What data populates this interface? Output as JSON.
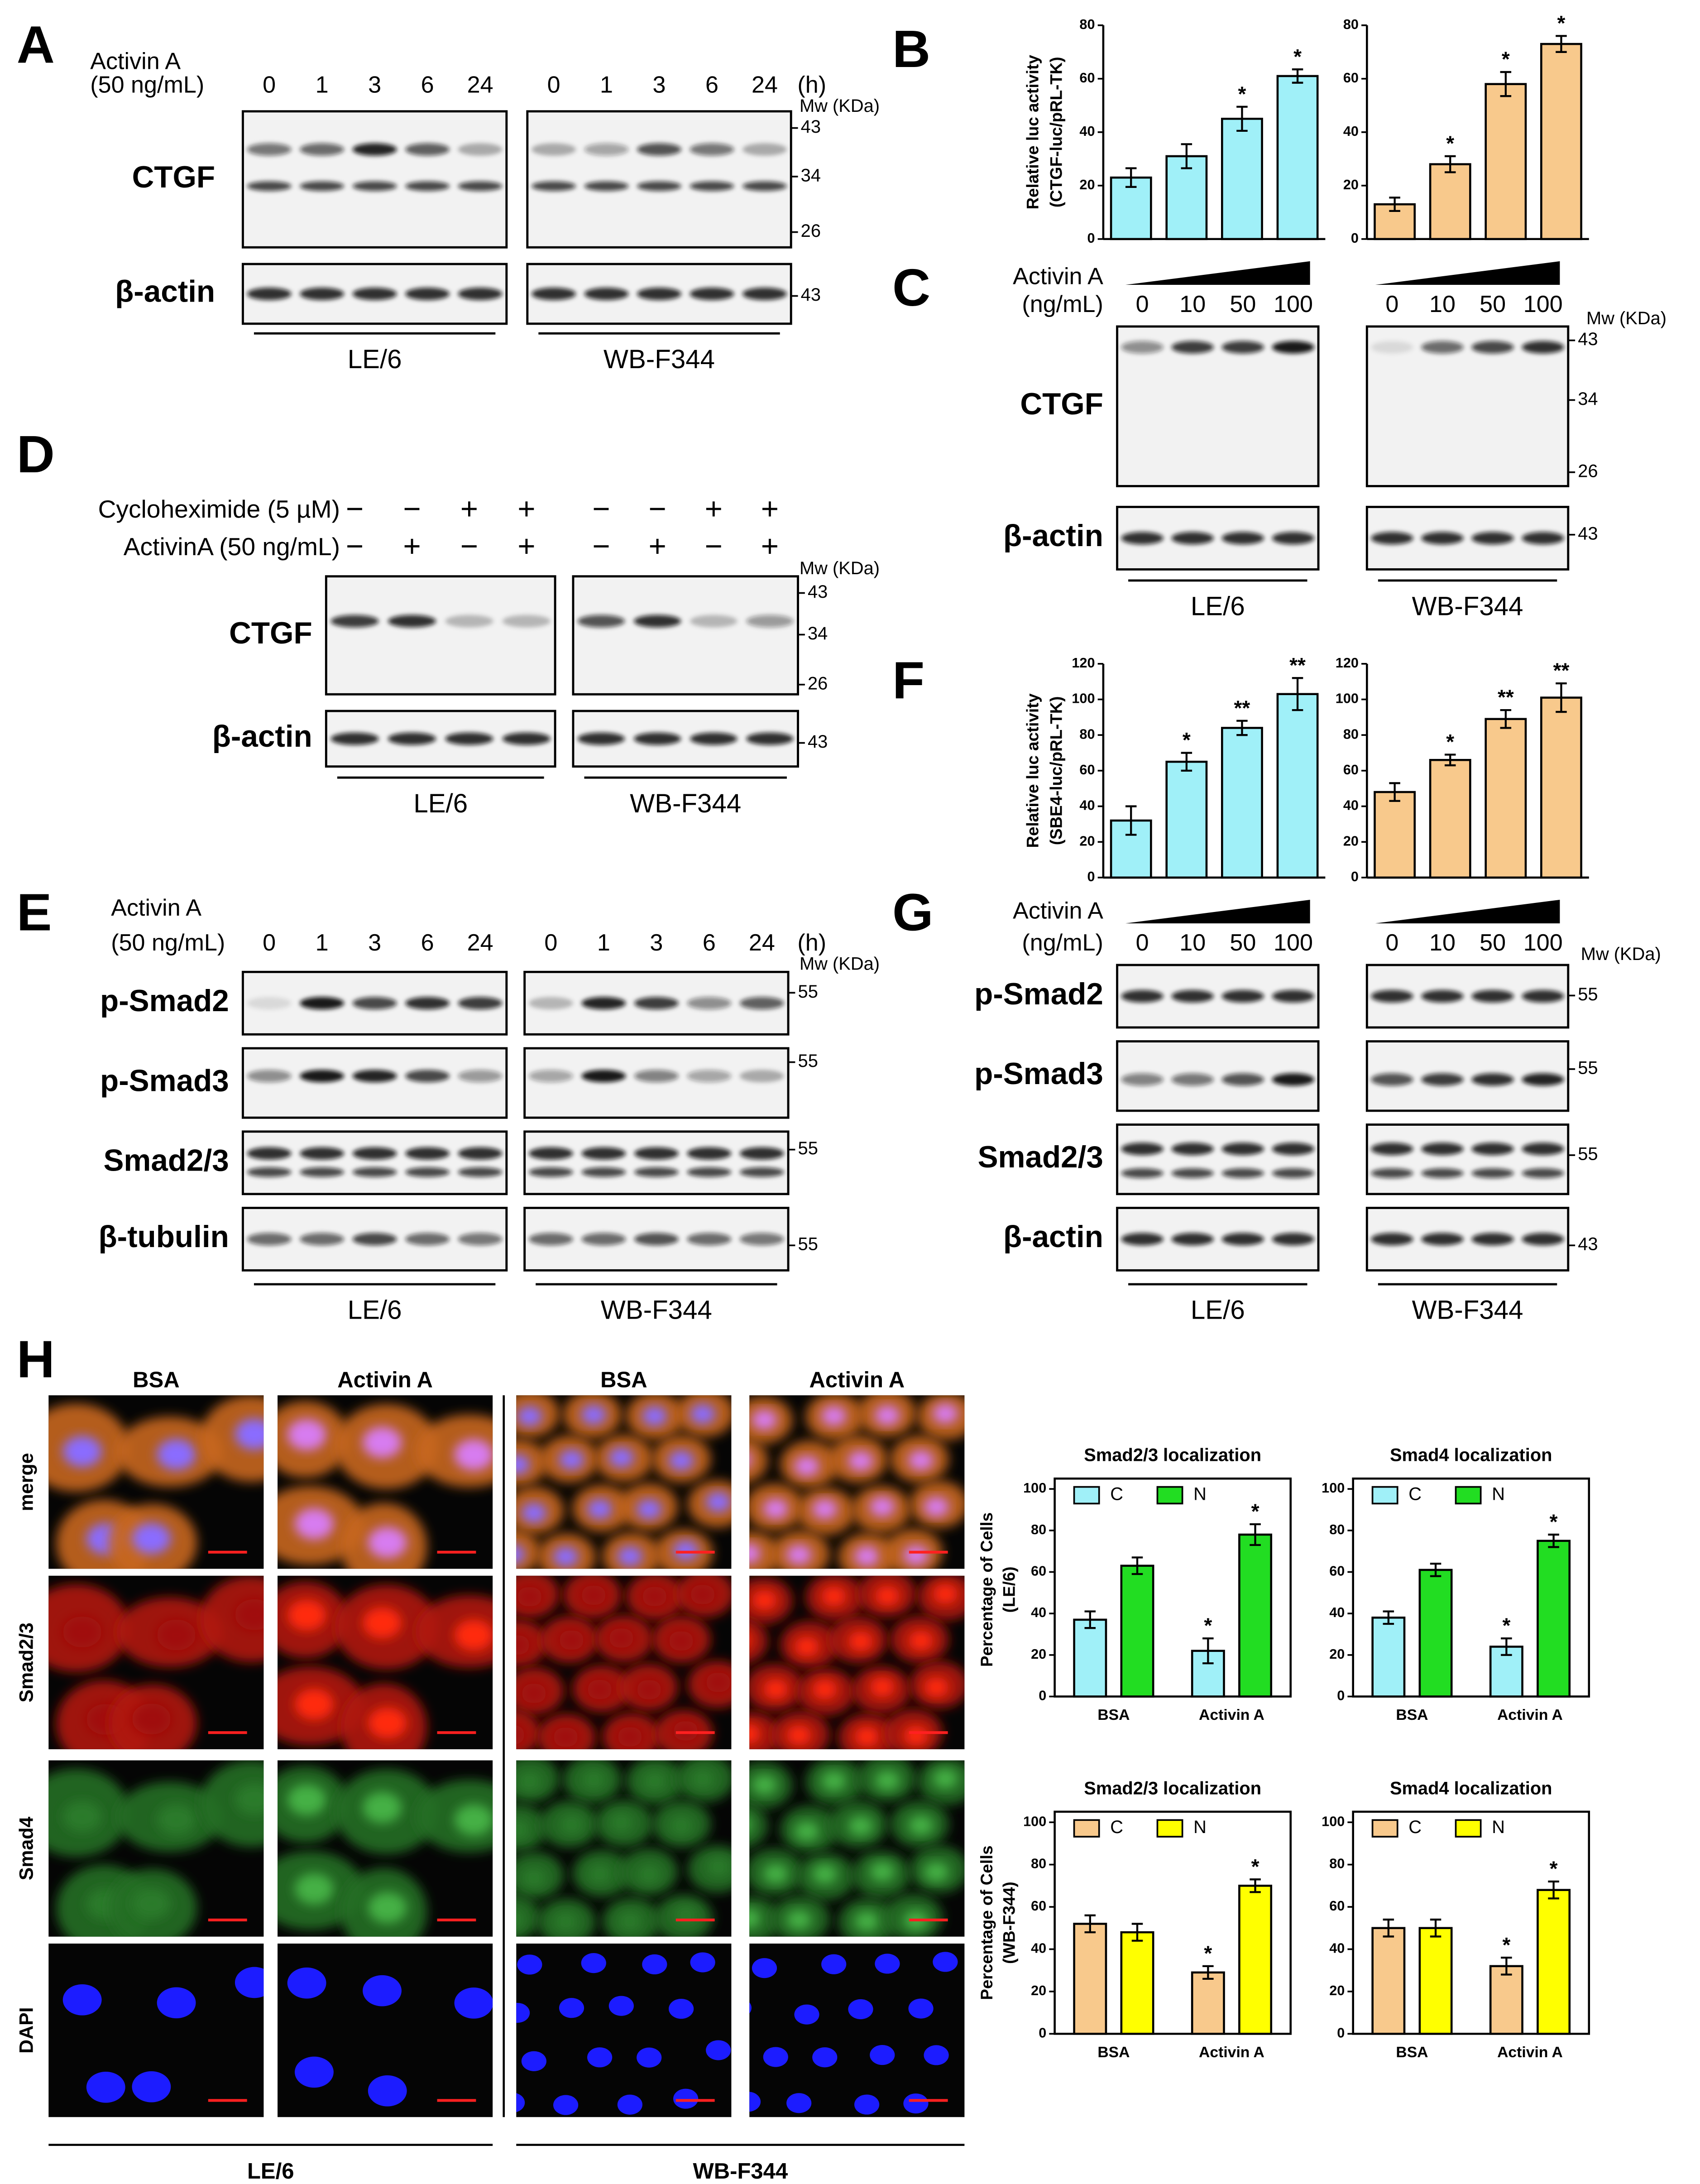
{
  "panel_letters": [
    "A",
    "B",
    "C",
    "D",
    "E",
    "F",
    "G",
    "H"
  ],
  "blots": {
    "A": {
      "treatment": [
        "Activin A",
        "(50 ng/mL)"
      ],
      "lanes": [
        "0",
        "1",
        "3",
        "6",
        "24"
      ],
      "unit": "(h)",
      "mw_title": "Mw (KDa)",
      "rows": [
        {
          "label": "CTGF",
          "mw": [
            "43",
            "34",
            "26"
          ]
        },
        {
          "label": "β-actin",
          "mw": [
            "43"
          ]
        }
      ],
      "groups": [
        "LE/6",
        "WB-F344"
      ]
    },
    "C": {
      "treatment": [
        "Activin A",
        "(ng/mL)"
      ],
      "lanes": [
        "0",
        "10",
        "50",
        "100"
      ],
      "mw_title": "Mw (KDa)",
      "rows": [
        {
          "label": "CTGF",
          "mw": [
            "43",
            "34",
            "26"
          ]
        },
        {
          "label": "β-actin",
          "mw": [
            "43"
          ]
        }
      ],
      "groups": [
        "LE/6",
        "WB-F344"
      ]
    },
    "D": {
      "conditions": [
        {
          "label": "Cycloheximide (5 µM)",
          "signs": [
            "−",
            "−",
            "+",
            "+"
          ]
        },
        {
          "label": "ActivinA (50 ng/mL)",
          "signs": [
            "−",
            "+",
            "−",
            "+"
          ]
        }
      ],
      "mw_title": "Mw (KDa)",
      "rows": [
        {
          "label": "CTGF",
          "mw": [
            "43",
            "34",
            "26"
          ]
        },
        {
          "label": "β-actin",
          "mw": [
            "43"
          ]
        }
      ],
      "groups": [
        "LE/6",
        "WB-F344"
      ]
    },
    "E": {
      "treatment": [
        "Activin A",
        "(50 ng/mL)"
      ],
      "lanes": [
        "0",
        "1",
        "3",
        "6",
        "24"
      ],
      "unit": "(h)",
      "mw_title": "Mw (KDa)",
      "rows": [
        {
          "label": "p-Smad2",
          "mw": [
            "55"
          ]
        },
        {
          "label": "p-Smad3",
          "mw": [
            "55"
          ]
        },
        {
          "label": "Smad2/3",
          "mw": [
            "55"
          ]
        },
        {
          "label": "β-tubulin",
          "mw": [
            "55"
          ]
        }
      ],
      "groups": [
        "LE/6",
        "WB-F344"
      ]
    },
    "G": {
      "treatment": [
        "Activin A",
        "(ng/mL)"
      ],
      "lanes": [
        "0",
        "10",
        "50",
        "100"
      ],
      "mw_title": "Mw (KDa)",
      "rows": [
        {
          "label": "p-Smad2",
          "mw": [
            "55"
          ]
        },
        {
          "label": "p-Smad3",
          "mw": [
            "55"
          ]
        },
        {
          "label": "Smad2/3",
          "mw": [
            "55"
          ]
        },
        {
          "label": "β-actin",
          "mw": [
            "43"
          ]
        }
      ],
      "groups": [
        "LE/6",
        "WB-F344"
      ]
    }
  },
  "imaging": {
    "columns": [
      "BSA",
      "Activin A",
      "BSA",
      "Activin A"
    ],
    "rows": [
      "merge",
      "Smad2/3",
      "Smad4",
      "DAPI"
    ],
    "groups": [
      "LE/6",
      "WB-F344"
    ]
  },
  "chart_data": [
    {
      "type": "bar",
      "ylabel": [
        "Relative luc activity",
        "(CTGF-luc/pRL-TK)"
      ],
      "categories": [
        null,
        null,
        null,
        null
      ],
      "ylim": [
        0,
        80
      ],
      "yticks": [
        0,
        20,
        40,
        60,
        80
      ],
      "series": [
        {
          "color": "#a0f0f8",
          "values": [
            23,
            31,
            45,
            61
          ],
          "errors": [
            3.5,
            4.5,
            4.5,
            2.5
          ],
          "significance": [
            null,
            null,
            "*",
            "*"
          ]
        }
      ]
    },
    {
      "type": "bar",
      "categories": [
        null,
        null,
        null,
        null
      ],
      "ylim": [
        0,
        80
      ],
      "yticks": [
        0,
        20,
        40,
        60,
        80
      ],
      "series": [
        {
          "color": "#f8c98c",
          "values": [
            13,
            28,
            58,
            73
          ],
          "errors": [
            2.5,
            3,
            4.5,
            3
          ],
          "significance": [
            null,
            "*",
            "*",
            "*"
          ]
        }
      ]
    },
    {
      "type": "bar",
      "ylabel": [
        "Relative luc activity",
        "(SBE4-luc/pRL-TK)"
      ],
      "categories": [
        null,
        null,
        null,
        null
      ],
      "ylim": [
        0,
        120
      ],
      "yticks": [
        0,
        20,
        40,
        60,
        80,
        100,
        120
      ],
      "series": [
        {
          "color": "#a0f0f8",
          "values": [
            32,
            65,
            84,
            103
          ],
          "errors": [
            8,
            5,
            4,
            9
          ],
          "significance": [
            null,
            "*",
            "**",
            "**"
          ]
        }
      ]
    },
    {
      "type": "bar",
      "categories": [
        null,
        null,
        null,
        null
      ],
      "ylim": [
        0,
        120
      ],
      "yticks": [
        0,
        20,
        40,
        60,
        80,
        100,
        120
      ],
      "series": [
        {
          "color": "#f8c98c",
          "values": [
            48,
            66,
            89,
            101
          ],
          "errors": [
            5,
            3,
            5,
            8
          ],
          "significance": [
            null,
            "*",
            "**",
            "**"
          ]
        }
      ]
    },
    {
      "type": "bar",
      "title": "Smad2/3 localization",
      "ylabel": [
        "Percentage of Cells",
        "(LE/6)"
      ],
      "categories": [
        "BSA",
        "Activin A"
      ],
      "ylim": [
        0,
        105
      ],
      "yticks": [
        0,
        20,
        40,
        60,
        80,
        100
      ],
      "series": [
        {
          "name": "C",
          "color": "#a0f0f8",
          "values": [
            37,
            22
          ],
          "errors": [
            4,
            6
          ],
          "significance": [
            null,
            "*"
          ]
        },
        {
          "name": "N",
          "color": "#22dd22",
          "values": [
            63,
            78
          ],
          "errors": [
            4,
            5
          ],
          "significance": [
            null,
            "*"
          ]
        }
      ]
    },
    {
      "type": "bar",
      "title": "Smad4 localization",
      "categories": [
        "BSA",
        "Activin A"
      ],
      "ylim": [
        0,
        105
      ],
      "yticks": [
        0,
        20,
        40,
        60,
        80,
        100
      ],
      "series": [
        {
          "name": "C",
          "color": "#a0f0f8",
          "values": [
            38,
            24
          ],
          "errors": [
            3,
            4
          ],
          "significance": [
            null,
            "*"
          ]
        },
        {
          "name": "N",
          "color": "#22dd22",
          "values": [
            61,
            75
          ],
          "errors": [
            3,
            3
          ],
          "significance": [
            null,
            "*"
          ]
        }
      ]
    },
    {
      "type": "bar",
      "title": "Smad2/3 localization",
      "ylabel": [
        "Percentage of Cells",
        "(WB-F344)"
      ],
      "categories": [
        "BSA",
        "Activin A"
      ],
      "ylim": [
        0,
        105
      ],
      "yticks": [
        0,
        20,
        40,
        60,
        80,
        100
      ],
      "series": [
        {
          "name": "C",
          "color": "#f8c98c",
          "values": [
            52,
            29
          ],
          "errors": [
            4,
            3
          ],
          "significance": [
            null,
            "*"
          ]
        },
        {
          "name": "N",
          "color": "#ffff00",
          "values": [
            48,
            70
          ],
          "errors": [
            4,
            3
          ],
          "significance": [
            null,
            "*"
          ]
        }
      ]
    },
    {
      "type": "bar",
      "title": "Smad4 localization",
      "categories": [
        "BSA",
        "Activin A"
      ],
      "ylim": [
        0,
        105
      ],
      "yticks": [
        0,
        20,
        40,
        60,
        80,
        100
      ],
      "series": [
        {
          "name": "C",
          "color": "#f8c98c",
          "values": [
            50,
            32
          ],
          "errors": [
            4,
            4
          ],
          "significance": [
            null,
            "*"
          ]
        },
        {
          "name": "N",
          "color": "#ffff00",
          "values": [
            50,
            68
          ],
          "errors": [
            4,
            4
          ],
          "significance": [
            null,
            "*"
          ]
        }
      ]
    }
  ]
}
